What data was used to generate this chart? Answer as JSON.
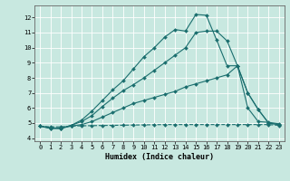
{
  "xlabel": "Humidex (Indice chaleur)",
  "ylabel": "",
  "bg_color": "#c8e8e0",
  "grid_color": "#ffffff",
  "line_color": "#1a6e6e",
  "xlim": [
    -0.5,
    23.5
  ],
  "ylim": [
    3.8,
    12.8
  ],
  "xticks": [
    0,
    1,
    2,
    3,
    4,
    5,
    6,
    7,
    8,
    9,
    10,
    11,
    12,
    13,
    14,
    15,
    16,
    17,
    18,
    19,
    20,
    21,
    22,
    23
  ],
  "yticks": [
    4,
    5,
    6,
    7,
    8,
    9,
    10,
    11,
    12
  ],
  "series": [
    {
      "x": [
        0,
        1,
        2,
        3,
        4,
        5,
        6,
        7,
        8,
        9,
        10,
        11,
        12,
        13,
        14,
        15,
        16,
        17,
        18,
        19,
        20,
        21,
        22,
        23
      ],
      "y": [
        4.8,
        4.75,
        4.75,
        4.8,
        4.82,
        4.83,
        4.84,
        4.85,
        4.86,
        4.87,
        4.88,
        4.89,
        4.9,
        4.9,
        4.9,
        4.9,
        4.9,
        4.9,
        4.9,
        4.9,
        4.9,
        4.9,
        4.9,
        4.85
      ],
      "linestyle": "--",
      "marker": "D",
      "markersize": 2.0
    },
    {
      "x": [
        0,
        1,
        2,
        3,
        4,
        5,
        6,
        7,
        8,
        9,
        10,
        11,
        12,
        13,
        14,
        15,
        16,
        17,
        18,
        19,
        20,
        21,
        22,
        23
      ],
      "y": [
        4.8,
        4.7,
        4.65,
        4.8,
        4.9,
        5.1,
        5.4,
        5.7,
        6.0,
        6.3,
        6.5,
        6.7,
        6.9,
        7.1,
        7.4,
        7.6,
        7.8,
        8.0,
        8.2,
        8.8,
        7.0,
        5.9,
        5.0,
        4.9
      ],
      "linestyle": "-",
      "marker": "D",
      "markersize": 2.0
    },
    {
      "x": [
        0,
        1,
        2,
        3,
        4,
        5,
        6,
        7,
        8,
        9,
        10,
        11,
        12,
        13,
        14,
        15,
        16,
        17,
        18,
        19,
        20,
        21,
        22,
        23
      ],
      "y": [
        4.8,
        4.65,
        4.65,
        4.85,
        5.1,
        5.5,
        6.1,
        6.65,
        7.15,
        7.55,
        8.0,
        8.5,
        9.0,
        9.5,
        10.0,
        11.0,
        11.1,
        11.1,
        10.45,
        8.8,
        6.0,
        5.1,
        5.05,
        4.95
      ],
      "linestyle": "-",
      "marker": "D",
      "markersize": 2.0
    },
    {
      "x": [
        0,
        1,
        2,
        3,
        4,
        5,
        6,
        7,
        8,
        9,
        10,
        11,
        12,
        13,
        14,
        15,
        16,
        17,
        18,
        19,
        20,
        21,
        22,
        23
      ],
      "y": [
        4.8,
        4.65,
        4.65,
        4.85,
        5.2,
        5.8,
        6.5,
        7.2,
        7.8,
        8.6,
        9.4,
        10.0,
        10.7,
        11.2,
        11.1,
        12.2,
        12.15,
        10.5,
        8.8,
        8.8,
        7.0,
        5.9,
        5.0,
        4.9
      ],
      "linestyle": "-",
      "marker": "D",
      "markersize": 2.0
    }
  ]
}
